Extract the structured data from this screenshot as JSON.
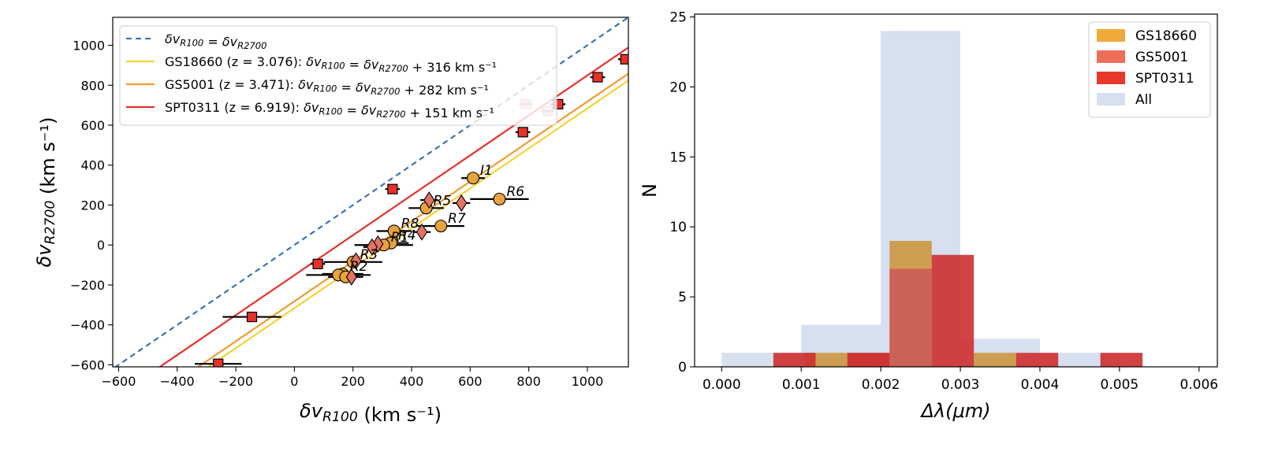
{
  "chart_data": [
    {
      "type": "scatter",
      "xlabel": "δv_R100 (km s⁻¹)",
      "ylabel": "δv_R2700 (km s⁻¹)",
      "xlim": [
        -620,
        1140
      ],
      "ylim": [
        -610,
        1140
      ],
      "xticks": [
        -600,
        -400,
        -200,
        0,
        200,
        400,
        600,
        800,
        1000
      ],
      "yticks": [
        -600,
        -400,
        -200,
        0,
        200,
        400,
        600,
        800,
        1000
      ],
      "tick_labels_x": [
        "−600",
        "−400",
        "−200",
        "0",
        "200",
        "400",
        "600",
        "800",
        "1000"
      ],
      "tick_labels_y": [
        "−600",
        "−400",
        "−200",
        "0",
        "200",
        "400",
        "600",
        "800",
        "1000"
      ],
      "legend": [
        {
          "name": "identity",
          "text": "δv_R100 = δv_R2700",
          "style": "dashed",
          "color": "#3b73b0",
          "offset": 0
        },
        {
          "name": "gs18660",
          "text": "GS18660 (z = 3.076): δv_R100 = δv_R2700 + 316 km s⁻¹",
          "style": "solid",
          "color": "#f3d334",
          "offset": -316
        },
        {
          "name": "gs5001",
          "text": "GS5001 (z = 3.471): δv_R100 = δv_R2700 + 282 km s⁻¹",
          "style": "solid",
          "color": "#ef9b2e",
          "offset": -282
        },
        {
          "name": "spt0311",
          "text": "SPT0311 (z = 6.919): δv_R100 = δv_R2700 + 151 km s⁻¹",
          "style": "solid",
          "color": "#e8302a",
          "offset": -151
        }
      ],
      "series": [
        {
          "name": "GS18660",
          "marker": "circle",
          "color": "#e8a33e",
          "points": [
            {
              "label": "I1",
              "x": 610,
              "y": 335,
              "xerr": 40
            },
            {
              "label": "R6",
              "x": 700,
              "y": 230,
              "xerr": 100
            },
            {
              "label": "R5",
              "x": 450,
              "y": 185,
              "xerr": 60
            },
            {
              "label": "R7",
              "x": 500,
              "y": 95,
              "xerr": 80
            },
            {
              "label": "R8",
              "x": 340,
              "y": 70,
              "xerr": 60
            },
            {
              "label": "R4",
              "x": 330,
              "y": 10,
              "xerr": 60
            },
            {
              "label": "R1",
              "x": 305,
              "y": 0,
              "xerr": 100
            },
            {
              "label": "R3",
              "x": 200,
              "y": -85,
              "xerr": 100
            },
            {
              "label": "R2",
              "x": 165,
              "y": -145,
              "xerr": 70
            },
            {
              "label": "",
              "x": 150,
              "y": -150,
              "xerr": 110
            },
            {
              "label": "",
              "x": 175,
              "y": -160,
              "xerr": 60
            }
          ]
        },
        {
          "name": "GS5001",
          "marker": "diamond",
          "color": "#e57263",
          "points": [
            {
              "label": "",
              "x": 460,
              "y": 225,
              "xerr": 30
            },
            {
              "label": "",
              "x": 570,
              "y": 210,
              "xerr": 30
            },
            {
              "label": "",
              "x": 435,
              "y": 65,
              "xerr": 30
            },
            {
              "label": "",
              "x": 285,
              "y": 5,
              "xerr": 30
            },
            {
              "label": "",
              "x": 265,
              "y": -10,
              "xerr": 30
            },
            {
              "label": "",
              "x": 210,
              "y": -80,
              "xerr": 30
            },
            {
              "label": "",
              "x": 195,
              "y": -160,
              "xerr": 30
            }
          ]
        },
        {
          "name": "SPT0311",
          "marker": "square",
          "color": "#e8302a",
          "points": [
            {
              "label": "",
              "x": 1130,
              "y": 930,
              "xerr": 25
            },
            {
              "label": "",
              "x": 1035,
              "y": 840,
              "xerr": 25
            },
            {
              "label": "",
              "x": 900,
              "y": 705,
              "xerr": 25
            },
            {
              "label": "",
              "x": 790,
              "y": 705,
              "xerr": 25,
              "faded": true
            },
            {
              "label": "",
              "x": 865,
              "y": 670,
              "xerr": 25,
              "faded": true
            },
            {
              "label": "",
              "x": 780,
              "y": 565,
              "xerr": 25
            },
            {
              "label": "",
              "x": 335,
              "y": 280,
              "xerr": 25
            },
            {
              "label": "",
              "x": 80,
              "y": -95,
              "xerr": 25
            },
            {
              "label": "",
              "x": -145,
              "y": -360,
              "xerr": 100
            },
            {
              "label": "",
              "x": -260,
              "y": -595,
              "xerr": 80
            }
          ]
        }
      ]
    },
    {
      "type": "bar",
      "title": "",
      "xlabel": "Δλ(μm)",
      "ylabel": "N",
      "xlim": [
        -0.00034,
        0.00623
      ],
      "ylim": [
        0,
        25.2
      ],
      "xticks": [
        0.0,
        0.001,
        0.002,
        0.003,
        0.004,
        0.005,
        0.006
      ],
      "tick_labels_x": [
        "0.000",
        "0.001",
        "0.002",
        "0.003",
        "0.004",
        "0.005",
        "0.006"
      ],
      "yticks": [
        0,
        5,
        10,
        15,
        20,
        25
      ],
      "tick_labels_y": [
        "0",
        "5",
        "10",
        "15",
        "20",
        "25"
      ],
      "legend": [
        {
          "name": "GS18660",
          "color": "#f0aa3a"
        },
        {
          "name": "GS5001",
          "color": "#ee6e5a"
        },
        {
          "name": "SPT0311",
          "color": "#e8382e"
        },
        {
          "name": "All",
          "color": "#d6e0ee"
        }
      ],
      "series": [
        {
          "name": "All",
          "color": "#d6e0ee",
          "opacity": 1,
          "bins": [
            [
              0.0,
              0.001,
              1
            ],
            [
              0.001,
              0.002,
              3
            ],
            [
              0.002,
              0.003,
              24
            ],
            [
              0.003,
              0.004,
              2
            ],
            [
              0.004,
              0.005,
              1
            ]
          ]
        },
        {
          "name": "GS18660",
          "color": "#cc9740",
          "opacity": 0.9,
          "bins": [
            [
              0.00105,
              0.00158,
              1
            ],
            [
              0.00211,
              0.00264,
              9
            ],
            [
              0.00317,
              0.0037,
              1
            ]
          ]
        },
        {
          "name": "GS5001",
          "color": "#cc5a55",
          "opacity": 0.9,
          "bins": [
            [
              0.00158,
              0.00211,
              1
            ],
            [
              0.00211,
              0.00264,
              7
            ]
          ]
        },
        {
          "name": "SPT0311",
          "color": "#cd2f2f",
          "opacity": 0.9,
          "bins": [
            [
              0.00065,
              0.00118,
              1
            ],
            [
              0.00158,
              0.00211,
              1
            ],
            [
              0.00264,
              0.00317,
              8
            ],
            [
              0.0037,
              0.00423,
              1
            ],
            [
              0.00476,
              0.00529,
              1
            ]
          ]
        }
      ]
    }
  ]
}
